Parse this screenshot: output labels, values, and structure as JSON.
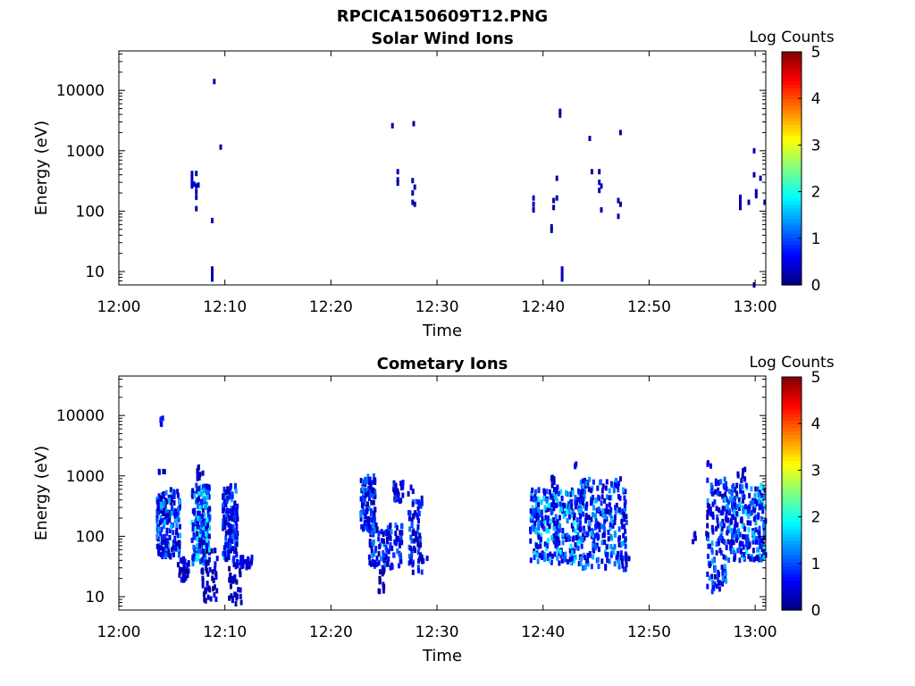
{
  "figure_title": "RPCICA150609T12.PNG",
  "colormap": "jet",
  "chart_data": [
    {
      "type": "heatmap",
      "title": "Solar Wind Ions",
      "xlabel": "Time",
      "ylabel": "Energy (eV)",
      "x_ticks": [
        "12:00",
        "12:10",
        "12:20",
        "12:30",
        "12:40",
        "12:50",
        "13:00"
      ],
      "x_range_minutes": [
        0,
        61
      ],
      "y_scale": "log",
      "y_range": [
        6,
        45000
      ],
      "y_ticks": [
        {
          "value": 10,
          "label": "10"
        },
        {
          "value": 100,
          "label": "100"
        },
        {
          "value": 1000,
          "label": "1000"
        },
        {
          "value": 10000,
          "label": "10000"
        }
      ],
      "colorbar": {
        "label": "Log Counts",
        "range": [
          0,
          5
        ],
        "ticks": [
          "0",
          "1",
          "2",
          "3",
          "4",
          "5"
        ]
      },
      "points": [
        [
          6.9,
          420,
          0.3
        ],
        [
          6.9,
          350,
          0.3
        ],
        [
          6.9,
          300,
          0.4
        ],
        [
          6.9,
          260,
          0.3
        ],
        [
          7.1,
          280,
          0.4
        ],
        [
          7.3,
          420,
          0.2
        ],
        [
          7.3,
          260,
          0.3
        ],
        [
          7.5,
          270,
          0.2
        ],
        [
          7.3,
          210,
          0.2
        ],
        [
          7.3,
          170,
          0.3
        ],
        [
          7.3,
          110,
          0.2
        ],
        [
          8.8,
          70,
          0.3
        ],
        [
          8.8,
          11,
          0.2
        ],
        [
          8.8,
          9,
          0.2
        ],
        [
          8.8,
          7.5,
          0.2
        ],
        [
          9.0,
          14000,
          0.2
        ],
        [
          9.6,
          1150,
          0.2
        ],
        [
          25.8,
          2600,
          0.2
        ],
        [
          26.3,
          450,
          0.3
        ],
        [
          26.3,
          330,
          0.3
        ],
        [
          26.3,
          290,
          0.2
        ],
        [
          27.8,
          2800,
          0.2
        ],
        [
          27.7,
          320,
          0.2
        ],
        [
          27.9,
          250,
          0.2
        ],
        [
          27.7,
          200,
          0.2
        ],
        [
          27.7,
          140,
          0.2
        ],
        [
          27.9,
          130,
          0.2
        ],
        [
          39.1,
          165,
          0.3
        ],
        [
          39.1,
          130,
          0.3
        ],
        [
          39.1,
          105,
          0.2
        ],
        [
          40.8,
          55,
          0.2
        ],
        [
          40.8,
          48,
          0.2
        ],
        [
          41.0,
          150,
          0.2
        ],
        [
          41.0,
          115,
          0.2
        ],
        [
          41.3,
          165,
          0.2
        ],
        [
          41.3,
          350,
          0.2
        ],
        [
          41.6,
          4500,
          0.2
        ],
        [
          41.6,
          3900,
          0.2
        ],
        [
          41.8,
          11,
          0.3
        ],
        [
          41.8,
          9,
          0.3
        ],
        [
          41.8,
          7.5,
          0.3
        ],
        [
          44.4,
          1600,
          0.2
        ],
        [
          44.6,
          450,
          0.2
        ],
        [
          45.3,
          450,
          0.2
        ],
        [
          45.3,
          300,
          0.3
        ],
        [
          45.5,
          260,
          0.2
        ],
        [
          45.3,
          220,
          0.2
        ],
        [
          45.5,
          105,
          0.2
        ],
        [
          47.3,
          2000,
          0.2
        ],
        [
          47.1,
          150,
          0.2
        ],
        [
          47.3,
          130,
          0.2
        ],
        [
          47.1,
          82,
          0.2
        ],
        [
          58.6,
          170,
          0.3
        ],
        [
          58.6,
          140,
          0.2
        ],
        [
          58.6,
          115,
          0.2
        ],
        [
          59.4,
          140,
          0.2
        ],
        [
          59.9,
          1000,
          0.2
        ],
        [
          59.9,
          400,
          0.2
        ],
        [
          60.1,
          210,
          0.2
        ],
        [
          60.1,
          180,
          0.2
        ],
        [
          60.5,
          350,
          0.2
        ],
        [
          60.9,
          140,
          0.2
        ],
        [
          59.9,
          6,
          0.2
        ]
      ]
    },
    {
      "type": "heatmap",
      "title": "Cometary Ions",
      "xlabel": "Time",
      "ylabel": "Energy (eV)",
      "x_ticks": [
        "12:00",
        "12:10",
        "12:20",
        "12:30",
        "12:40",
        "12:50",
        "13:00"
      ],
      "x_range_minutes": [
        0,
        61
      ],
      "y_scale": "log",
      "y_range": [
        6,
        45000
      ],
      "y_ticks": [
        {
          "value": 10,
          "label": "10"
        },
        {
          "value": 100,
          "label": "100"
        },
        {
          "value": 1000,
          "label": "1000"
        },
        {
          "value": 10000,
          "label": "10000"
        }
      ],
      "colorbar": {
        "label": "Log Counts",
        "range": [
          0,
          5
        ],
        "ticks": [
          "0",
          "1",
          "2",
          "3",
          "4",
          "5"
        ]
      },
      "clusters": [
        {
          "t": [
            3.6,
            5.8
          ],
          "e": [
            45,
            600
          ],
          "n": 190,
          "c": [
            0.2,
            1.6
          ]
        },
        {
          "t": [
            3.9,
            4.2
          ],
          "e": [
            7000,
            9000
          ],
          "n": 5,
          "c": [
            0.5,
            0.8
          ]
        },
        {
          "t": [
            3.8,
            4.4
          ],
          "e": [
            900,
            1200
          ],
          "n": 4,
          "c": [
            0.2,
            0.4
          ]
        },
        {
          "t": [
            5.5,
            6.7
          ],
          "e": [
            18,
            45
          ],
          "n": 35,
          "c": [
            0.1,
            0.8
          ]
        },
        {
          "t": [
            6.9,
            8.6
          ],
          "e": [
            35,
            700
          ],
          "n": 190,
          "c": [
            0.3,
            2.1
          ]
        },
        {
          "t": [
            7.0,
            8.0
          ],
          "e": [
            900,
            1400
          ],
          "n": 8,
          "c": [
            0.2,
            0.5
          ]
        },
        {
          "t": [
            7.8,
            9.3
          ],
          "e": [
            8,
            60
          ],
          "n": 45,
          "c": [
            0.1,
            0.6
          ]
        },
        {
          "t": [
            9.8,
            11.2
          ],
          "e": [
            40,
            700
          ],
          "n": 150,
          "c": [
            0.2,
            1.5
          ]
        },
        {
          "t": [
            10.8,
            12.6
          ],
          "e": [
            30,
            45
          ],
          "n": 35,
          "c": [
            0.3,
            0.9
          ]
        },
        {
          "t": [
            10.4,
            11.6
          ],
          "e": [
            7,
            30
          ],
          "n": 30,
          "c": [
            0.1,
            0.5
          ]
        },
        {
          "t": [
            22.8,
            24.2
          ],
          "e": [
            120,
            1000
          ],
          "n": 110,
          "c": [
            0.2,
            1.5
          ]
        },
        {
          "t": [
            23.6,
            26.8
          ],
          "e": [
            30,
            160
          ],
          "n": 120,
          "c": [
            0.2,
            1.4
          ]
        },
        {
          "t": [
            24.5,
            25.1
          ],
          "e": [
            12,
            30
          ],
          "n": 15,
          "c": [
            0.1,
            0.4
          ]
        },
        {
          "t": [
            25.9,
            26.8
          ],
          "e": [
            350,
            800
          ],
          "n": 25,
          "c": [
            0.2,
            1.0
          ]
        },
        {
          "t": [
            27.3,
            28.6
          ],
          "e": [
            25,
            650
          ],
          "n": 70,
          "c": [
            0.2,
            1.2
          ]
        },
        {
          "t": [
            28.4,
            29.2
          ],
          "e": [
            38,
            45
          ],
          "n": 6,
          "c": [
            0.3,
            0.6
          ]
        },
        {
          "t": [
            38.8,
            43.6
          ],
          "e": [
            35,
            600
          ],
          "n": 300,
          "c": [
            0.3,
            1.9
          ]
        },
        {
          "t": [
            40.8,
            41.4
          ],
          "e": [
            550,
            1000
          ],
          "n": 8,
          "c": [
            0.2,
            0.5
          ]
        },
        {
          "t": [
            42.8,
            43.2
          ],
          "e": [
            1300,
            1800
          ],
          "n": 3,
          "c": [
            0.3,
            0.6
          ]
        },
        {
          "t": [
            43.5,
            47.9
          ],
          "e": [
            28,
            900
          ],
          "n": 250,
          "c": [
            0.3,
            1.6
          ]
        },
        {
          "t": [
            47.3,
            48.2
          ],
          "e": [
            38,
            45
          ],
          "n": 5,
          "c": [
            0.2,
            0.5
          ]
        },
        {
          "t": [
            55.4,
            57.3
          ],
          "e": [
            12,
            900
          ],
          "n": 130,
          "c": [
            0.2,
            1.5
          ]
        },
        {
          "t": [
            55.5,
            56.0
          ],
          "e": [
            1300,
            1700
          ],
          "n": 3,
          "c": [
            0.3,
            0.5
          ]
        },
        {
          "t": [
            57.3,
            61.0
          ],
          "e": [
            40,
            700
          ],
          "n": 240,
          "c": [
            0.3,
            1.9
          ]
        },
        {
          "t": [
            58.3,
            59.5
          ],
          "e": [
            800,
            1300
          ],
          "n": 8,
          "c": [
            0.2,
            0.5
          ]
        },
        {
          "t": [
            54.0,
            54.6
          ],
          "e": [
            75,
            120
          ],
          "n": 4,
          "c": [
            0.3,
            0.6
          ]
        }
      ]
    }
  ]
}
